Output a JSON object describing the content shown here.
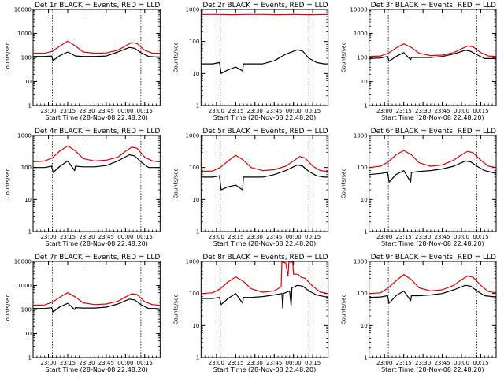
{
  "figure": {
    "background": "#ffffff",
    "events_color": "#000000",
    "lld_color": "#e00000",
    "grid_color": "#000000"
  },
  "chart_data": [
    {
      "type": "line",
      "title": "Det 1r BLACK = Events, RED = LLD",
      "xlabel": "Start Time (28-Nov-08 22:48:20)",
      "ylabel": "Counts/sec",
      "yscale": "log",
      "ylim": [
        1,
        10000
      ],
      "xlim": [
        22.8,
        24.45
      ],
      "xticks": [
        "23:00",
        "23:15",
        "23:30",
        "23:45",
        "00:00",
        "00:15"
      ],
      "yticks": [
        "1",
        "10",
        "100",
        "1000",
        "10000"
      ],
      "vlines": [
        23.05,
        24.2
      ],
      "series": [
        {
          "name": "Events",
          "color": "#000000",
          "x": [
            22.8,
            22.95,
            23.04,
            23.06,
            23.15,
            23.25,
            23.34,
            23.35,
            23.45,
            23.6,
            23.75,
            23.9,
            24.05,
            24.12,
            24.2,
            24.3,
            24.4,
            24.45
          ],
          "y": [
            110,
            110,
            115,
            75,
            120,
            170,
            120,
            115,
            110,
            110,
            115,
            170,
            260,
            240,
            160,
            110,
            105,
            105
          ]
        },
        {
          "name": "LLD",
          "color": "#e00000",
          "x": [
            22.8,
            22.95,
            23.05,
            23.15,
            23.25,
            23.35,
            23.45,
            23.6,
            23.75,
            23.9,
            24.0,
            24.08,
            24.15,
            24.25,
            24.35,
            24.45
          ],
          "y": [
            150,
            150,
            180,
            300,
            480,
            300,
            170,
            150,
            155,
            200,
            300,
            420,
            380,
            200,
            150,
            150
          ]
        }
      ]
    },
    {
      "type": "line",
      "title": "Det 2r BLACK = Events, RED = LLD",
      "xlabel": "Start Time (28-Nov-08 22:48:20)",
      "ylabel": "Counts/sec",
      "yscale": "log",
      "ylim": [
        1,
        1000
      ],
      "xlim": [
        22.8,
        24.45
      ],
      "xticks": [
        "23:00",
        "23:15",
        "23:30",
        "23:45",
        "00:00",
        "00:15"
      ],
      "yticks": [
        "1",
        "10",
        "100",
        "1000"
      ],
      "vlines": [
        23.05,
        24.2
      ],
      "series": [
        {
          "name": "Events",
          "color": "#000000",
          "x": [
            22.8,
            22.95,
            23.04,
            23.06,
            23.15,
            23.25,
            23.34,
            23.35,
            23.45,
            23.6,
            23.75,
            23.9,
            24.05,
            24.12,
            24.2,
            24.3,
            24.4,
            24.45
          ],
          "y": [
            20,
            20,
            22,
            10,
            13,
            16,
            12,
            20,
            20,
            20,
            25,
            40,
            55,
            50,
            30,
            22,
            20,
            20
          ]
        },
        {
          "name": "LLD",
          "color": "#e00000",
          "x": [
            22.8,
            23.0,
            23.2,
            23.4,
            23.6,
            23.8,
            24.0,
            24.2,
            24.45
          ],
          "y": [
            700,
            700,
            690,
            700,
            700,
            690,
            700,
            690,
            700
          ]
        }
      ]
    },
    {
      "type": "line",
      "title": "Det 3r BLACK = Events, RED = LLD",
      "xlabel": "Start Time (28-Nov-08 22:48:20)",
      "ylabel": "Counts/sec",
      "yscale": "log",
      "ylim": [
        1,
        10000
      ],
      "xlim": [
        22.8,
        24.45
      ],
      "xticks": [
        "23:00",
        "23:15",
        "23:30",
        "23:45",
        "00:00",
        "00:15"
      ],
      "yticks": [
        "1",
        "10",
        "100",
        "1000",
        "10000"
      ],
      "vlines": [
        23.05,
        24.2
      ],
      "series": [
        {
          "name": "Events",
          "color": "#000000",
          "x": [
            22.8,
            22.95,
            23.04,
            23.06,
            23.15,
            23.25,
            23.34,
            23.35,
            23.45,
            23.6,
            23.75,
            23.9,
            24.05,
            24.12,
            24.2,
            24.3,
            24.4,
            24.45
          ],
          "y": [
            90,
            95,
            110,
            70,
            110,
            160,
            80,
            100,
            100,
            100,
            110,
            140,
            200,
            180,
            130,
            90,
            90,
            90
          ]
        },
        {
          "name": "LLD",
          "color": "#e00000",
          "x": [
            22.8,
            22.95,
            23.05,
            23.15,
            23.25,
            23.35,
            23.45,
            23.6,
            23.75,
            23.9,
            24.0,
            24.08,
            24.15,
            24.25,
            24.35,
            24.45
          ],
          "y": [
            110,
            115,
            150,
            250,
            370,
            260,
            150,
            120,
            125,
            160,
            230,
            300,
            280,
            160,
            115,
            110
          ]
        }
      ]
    },
    {
      "type": "line",
      "title": "Det 4r BLACK = Events, RED = LLD",
      "xlabel": "Start Time (28-Nov-08 22:48:20)",
      "ylabel": "Counts/sec",
      "yscale": "log",
      "ylim": [
        1,
        1000
      ],
      "xlim": [
        22.8,
        24.45
      ],
      "xticks": [
        "23:00",
        "23:15",
        "23:30",
        "23:45",
        "00:00",
        "00:15"
      ],
      "yticks": [
        "1",
        "10",
        "100",
        "1000"
      ],
      "vlines": [
        23.05,
        24.2
      ],
      "series": [
        {
          "name": "Events",
          "color": "#000000",
          "x": [
            22.8,
            22.95,
            23.04,
            23.06,
            23.15,
            23.25,
            23.34,
            23.35,
            23.45,
            23.6,
            23.75,
            23.9,
            24.05,
            24.12,
            24.2,
            24.3,
            24.4,
            24.45
          ],
          "y": [
            100,
            100,
            110,
            70,
            110,
            160,
            80,
            110,
            105,
            105,
            115,
            160,
            250,
            230,
            150,
            100,
            100,
            100
          ]
        },
        {
          "name": "LLD",
          "color": "#e00000",
          "x": [
            22.8,
            22.95,
            23.05,
            23.15,
            23.25,
            23.35,
            23.45,
            23.6,
            23.75,
            23.9,
            24.0,
            24.08,
            24.15,
            24.25,
            24.35,
            24.45
          ],
          "y": [
            150,
            160,
            200,
            330,
            470,
            330,
            190,
            160,
            170,
            210,
            320,
            430,
            400,
            210,
            160,
            150
          ]
        }
      ]
    },
    {
      "type": "line",
      "title": "Det 5r BLACK = Events, RED = LLD",
      "xlabel": "Start Time (28-Nov-08 22:48:20)",
      "ylabel": "Counts/sec",
      "yscale": "log",
      "ylim": [
        1,
        1000
      ],
      "xlim": [
        22.8,
        24.45
      ],
      "xticks": [
        "23:00",
        "23:15",
        "23:30",
        "23:45",
        "00:00",
        "00:15"
      ],
      "yticks": [
        "1",
        "10",
        "100",
        "1000"
      ],
      "vlines": [
        23.05,
        24.2
      ],
      "series": [
        {
          "name": "Events",
          "color": "#000000",
          "x": [
            22.8,
            22.95,
            23.04,
            23.06,
            23.15,
            23.25,
            23.34,
            23.35,
            23.45,
            23.6,
            23.75,
            23.9,
            24.05,
            24.12,
            24.2,
            24.3,
            24.4,
            24.45
          ],
          "y": [
            50,
            50,
            55,
            20,
            25,
            28,
            20,
            50,
            50,
            50,
            60,
            80,
            120,
            110,
            75,
            55,
            50,
            50
          ]
        },
        {
          "name": "LLD",
          "color": "#e00000",
          "x": [
            22.8,
            22.95,
            23.05,
            23.15,
            23.25,
            23.35,
            23.45,
            23.6,
            23.75,
            23.9,
            24.0,
            24.08,
            24.15,
            24.25,
            24.35,
            24.45
          ],
          "y": [
            75,
            78,
            100,
            160,
            240,
            170,
            100,
            80,
            85,
            110,
            160,
            220,
            200,
            110,
            80,
            75
          ]
        }
      ]
    },
    {
      "type": "line",
      "title": "Det 6r BLACK = Events, RED = LLD",
      "xlabel": "Start Time (28-Nov-08 22:48:20)",
      "ylabel": "Counts/sec",
      "yscale": "log",
      "ylim": [
        1,
        1000
      ],
      "xlim": [
        22.8,
        24.45
      ],
      "xticks": [
        "23:00",
        "23:15",
        "23:30",
        "23:45",
        "00:00",
        "00:15"
      ],
      "yticks": [
        "1",
        "10",
        "100",
        "1000"
      ],
      "vlines": [
        23.05,
        24.2
      ],
      "series": [
        {
          "name": "Events",
          "color": "#000000",
          "x": [
            22.8,
            22.95,
            23.04,
            23.06,
            23.15,
            23.25,
            23.34,
            23.35,
            23.45,
            23.6,
            23.75,
            23.9,
            24.05,
            24.12,
            24.2,
            24.3,
            24.4,
            24.45
          ],
          "y": [
            60,
            65,
            70,
            35,
            60,
            80,
            35,
            70,
            75,
            80,
            90,
            110,
            160,
            150,
            110,
            80,
            70,
            65
          ]
        },
        {
          "name": "LLD",
          "color": "#e00000",
          "x": [
            22.8,
            22.95,
            23.05,
            23.15,
            23.25,
            23.35,
            23.45,
            23.6,
            23.75,
            23.9,
            24.0,
            24.08,
            24.15,
            24.25,
            24.35,
            24.45
          ],
          "y": [
            100,
            110,
            150,
            250,
            340,
            250,
            140,
            110,
            120,
            170,
            250,
            320,
            290,
            170,
            110,
            100
          ]
        }
      ]
    },
    {
      "type": "line",
      "title": "Det 7r BLACK = Events, RED = LLD",
      "xlabel": "Start Time (28-Nov-08 22:48:20)",
      "ylabel": "Counts/sec",
      "yscale": "log",
      "ylim": [
        1,
        10000
      ],
      "xlim": [
        22.8,
        24.45
      ],
      "xticks": [
        "23:00",
        "23:15",
        "23:30",
        "23:45",
        "00:00",
        "00:15"
      ],
      "yticks": [
        "1",
        "10",
        "100",
        "1000",
        "10000"
      ],
      "vlines": [
        23.05,
        24.2
      ],
      "series": [
        {
          "name": "Events",
          "color": "#000000",
          "x": [
            22.8,
            22.95,
            23.04,
            23.06,
            23.15,
            23.25,
            23.34,
            23.35,
            23.45,
            23.6,
            23.75,
            23.9,
            24.05,
            24.12,
            24.2,
            24.3,
            24.4,
            24.45
          ],
          "y": [
            110,
            110,
            120,
            80,
            130,
            180,
            100,
            120,
            115,
            115,
            125,
            170,
            270,
            250,
            160,
            110,
            110,
            105
          ]
        },
        {
          "name": "LLD",
          "color": "#e00000",
          "x": [
            22.8,
            22.95,
            23.05,
            23.15,
            23.25,
            23.35,
            23.45,
            23.6,
            23.75,
            23.9,
            24.0,
            24.08,
            24.15,
            24.25,
            24.35,
            24.45
          ],
          "y": [
            150,
            155,
            200,
            330,
            500,
            330,
            190,
            160,
            170,
            220,
            330,
            450,
            420,
            210,
            160,
            150
          ]
        }
      ]
    },
    {
      "type": "line",
      "title": "Det 8r BLACK = Events, RED = LLD",
      "xlabel": "Start Time (28-Nov-08 22:48:20)",
      "ylabel": "Counts/sec",
      "yscale": "log",
      "ylim": [
        1,
        1000
      ],
      "xlim": [
        22.8,
        24.45
      ],
      "xticks": [
        "23:00",
        "23:15",
        "23:30",
        "23:45",
        "00:00",
        "00:15"
      ],
      "yticks": [
        "1",
        "10",
        "100",
        "1000"
      ],
      "vlines": [
        23.05,
        24.2
      ],
      "series": [
        {
          "name": "Events",
          "color": "#000000",
          "x": [
            22.8,
            22.95,
            23.04,
            23.06,
            23.15,
            23.25,
            23.34,
            23.35,
            23.45,
            23.6,
            23.75,
            23.85,
            23.86,
            23.87,
            23.95,
            23.97,
            23.98,
            24.05,
            24.12,
            24.2,
            24.3,
            24.4,
            24.45
          ],
          "y": [
            70,
            70,
            75,
            45,
            70,
            100,
            50,
            75,
            75,
            80,
            90,
            100,
            35,
            100,
            120,
            40,
            150,
            180,
            170,
            120,
            90,
            80,
            75
          ]
        },
        {
          "name": "LLD",
          "color": "#e00000",
          "x": [
            22.8,
            22.95,
            23.05,
            23.15,
            23.25,
            23.35,
            23.45,
            23.6,
            23.75,
            23.84,
            23.85,
            23.9,
            23.93,
            23.94,
            23.99,
            24.0,
            24.06,
            24.1,
            24.15,
            24.25,
            24.35,
            24.45
          ],
          "y": [
            100,
            105,
            140,
            230,
            330,
            240,
            140,
            110,
            120,
            160,
            950,
            900,
            350,
            950,
            950,
            400,
            400,
            320,
            300,
            170,
            110,
            100
          ]
        }
      ]
    },
    {
      "type": "line",
      "title": "Det 9r BLACK = Events, RED = LLD",
      "xlabel": "Start Time (28-Nov-08 22:48:20)",
      "ylabel": "Counts/sec",
      "yscale": "log",
      "ylim": [
        1,
        1000
      ],
      "xlim": [
        22.8,
        24.45
      ],
      "xticks": [
        "23:00",
        "23:15",
        "23:30",
        "23:45",
        "00:00",
        "00:15"
      ],
      "yticks": [
        "1",
        "10",
        "100",
        "1000"
      ],
      "vlines": [
        23.05,
        24.2
      ],
      "series": [
        {
          "name": "Events",
          "color": "#000000",
          "x": [
            22.8,
            22.95,
            23.04,
            23.06,
            23.15,
            23.25,
            23.34,
            23.35,
            23.45,
            23.6,
            23.75,
            23.9,
            24.05,
            24.12,
            24.2,
            24.3,
            24.4,
            24.45
          ],
          "y": [
            75,
            78,
            85,
            50,
            85,
            120,
            60,
            85,
            85,
            90,
            100,
            130,
            180,
            170,
            120,
            85,
            80,
            78
          ]
        },
        {
          "name": "LLD",
          "color": "#e00000",
          "x": [
            22.8,
            22.95,
            23.05,
            23.15,
            23.25,
            23.35,
            23.45,
            23.6,
            23.75,
            23.9,
            24.0,
            24.08,
            24.15,
            24.25,
            24.35,
            24.45
          ],
          "y": [
            100,
            105,
            150,
            250,
            390,
            270,
            150,
            120,
            130,
            180,
            270,
            350,
            320,
            180,
            115,
            105
          ]
        }
      ]
    }
  ]
}
